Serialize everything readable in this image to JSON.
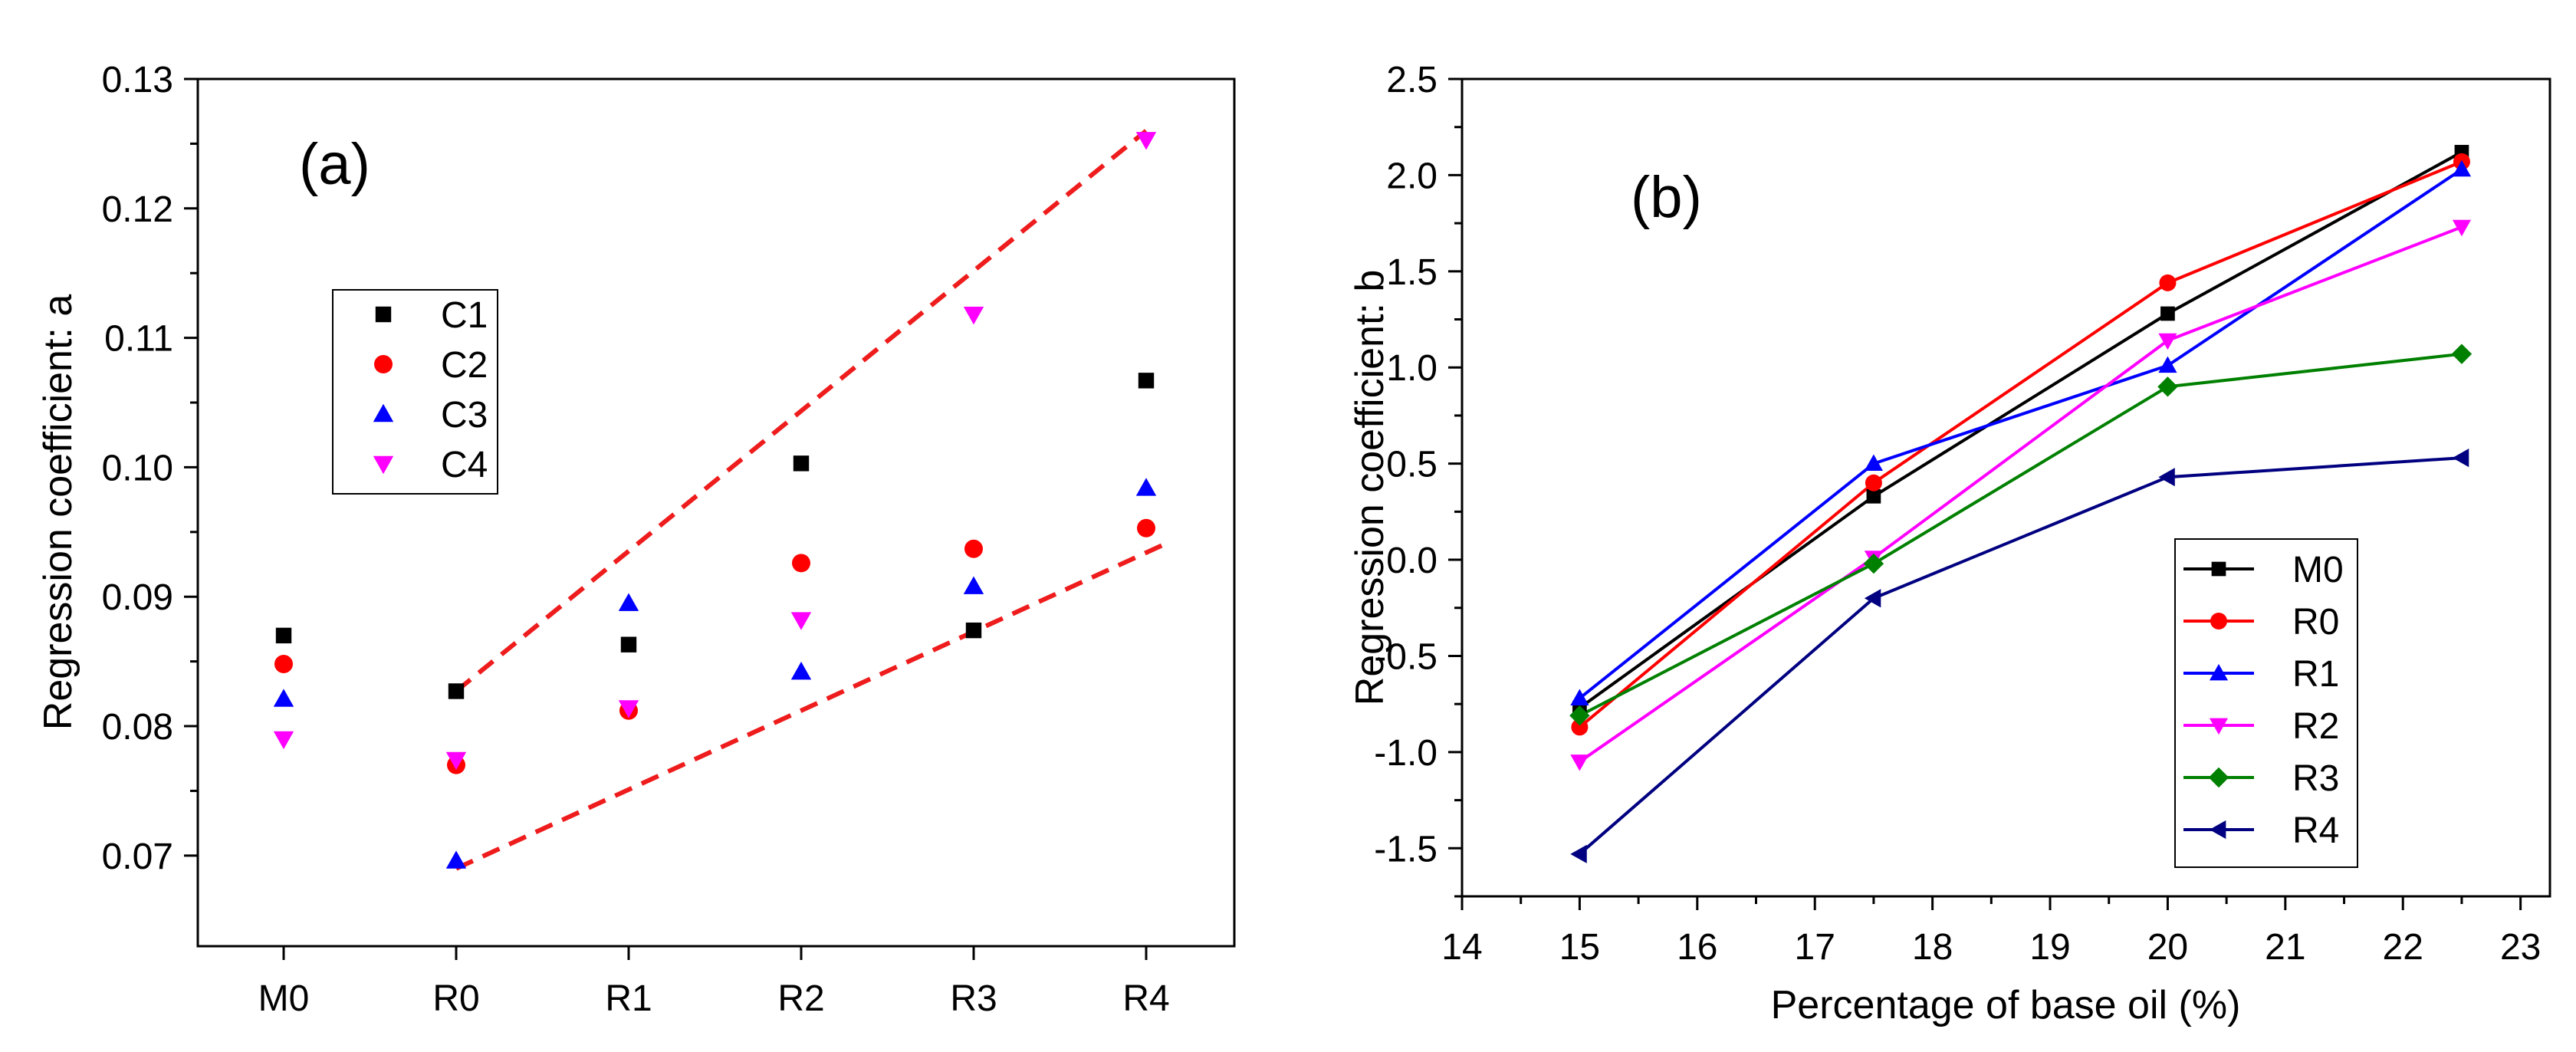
{
  "chart_data": [
    {
      "type": "scatter",
      "panel_label": "(a)",
      "title": "",
      "xlabel": "",
      "ylabel": "Regression coefficient: a",
      "categories": [
        "M0",
        "R0",
        "R1",
        "R2",
        "R3",
        "R4"
      ],
      "ylim": [
        0.063,
        0.13
      ],
      "yticks": [
        0.07,
        0.08,
        0.09,
        0.1,
        0.11,
        0.12,
        0.13
      ],
      "ytick_labels": [
        "0.07",
        "0.08",
        "0.09",
        "0.10",
        "0.11",
        "0.12",
        "0.13"
      ],
      "legend_position": "upper-left",
      "series": [
        {
          "name": "C1",
          "marker": "square",
          "color": "#000000",
          "values": [
            0.087,
            0.0827,
            0.0863,
            0.1003,
            0.0874,
            0.1067
          ]
        },
        {
          "name": "C2",
          "marker": "circle",
          "color": "#ff0000",
          "values": [
            0.0848,
            0.077,
            0.0812,
            0.0926,
            0.0937,
            0.0953
          ]
        },
        {
          "name": "C3",
          "marker": "triangle-up",
          "color": "#0000ff",
          "values": [
            0.0821,
            0.0696,
            0.0895,
            0.0842,
            0.0908,
            0.0984
          ]
        },
        {
          "name": "C4",
          "marker": "triangle-down",
          "color": "#ff00ff",
          "values": [
            0.079,
            0.0774,
            0.0814,
            0.0882,
            0.1118,
            0.1253
          ]
        }
      ],
      "trend_lines": [
        {
          "name": "upper-trend",
          "color": "#ee1c1c",
          "style": "dashed",
          "from": {
            "x": "R0",
            "y": 0.0827
          },
          "to": {
            "x": "R4",
            "y": 0.126
          }
        },
        {
          "name": "lower-trend",
          "color": "#ee1c1c",
          "style": "dashed",
          "from": {
            "x": "R0",
            "y": 0.069
          },
          "to": {
            "x": "R4+",
            "y": 0.094
          }
        }
      ]
    },
    {
      "type": "line",
      "panel_label": "(b)",
      "title": "",
      "xlabel": "Percentage of base oil (%)",
      "ylabel": "Regression coefficient: b",
      "x": [
        15,
        17.5,
        20,
        22.5
      ],
      "xlim": [
        14,
        23.25
      ],
      "ylim": [
        -1.75,
        2.5
      ],
      "xticks": [
        14,
        15,
        16,
        17,
        18,
        19,
        20,
        21,
        22,
        23
      ],
      "xtick_labels": [
        "14",
        "15",
        "16",
        "17",
        "18",
        "19",
        "20",
        "21",
        "22",
        "23"
      ],
      "yticks": [
        -1.5,
        -1.0,
        -0.5,
        0.0,
        0.5,
        1.0,
        1.5,
        2.0,
        2.5
      ],
      "ytick_labels": [
        "-1.5",
        "-1.0",
        "-0.5",
        "0.0",
        "0.5",
        "1.0",
        "1.5",
        "2.0",
        "2.5"
      ],
      "legend_position": "lower-right",
      "series": [
        {
          "name": "M0",
          "marker": "square",
          "color": "#000000",
          "values": [
            -0.77,
            0.33,
            1.28,
            2.12
          ]
        },
        {
          "name": "R0",
          "marker": "circle",
          "color": "#ff0000",
          "values": [
            -0.87,
            0.4,
            1.44,
            2.07
          ]
        },
        {
          "name": "R1",
          "marker": "triangle-up",
          "color": "#0000ff",
          "values": [
            -0.72,
            0.5,
            1.01,
            2.03
          ]
        },
        {
          "name": "R2",
          "marker": "triangle-down",
          "color": "#ff00ff",
          "values": [
            -1.05,
            0.01,
            1.14,
            1.73
          ]
        },
        {
          "name": "R3",
          "marker": "diamond",
          "color": "#008000",
          "values": [
            -0.81,
            -0.02,
            0.9,
            1.07
          ]
        },
        {
          "name": "R4",
          "marker": "triangle-left",
          "color": "#000080",
          "values": [
            -1.53,
            -0.2,
            0.43,
            0.53
          ]
        }
      ]
    }
  ]
}
